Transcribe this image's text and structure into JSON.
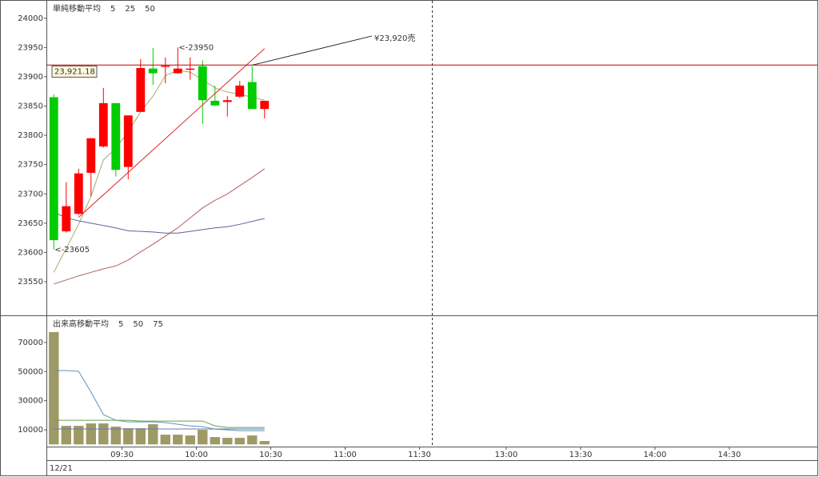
{
  "chart_data": [
    {
      "type": "candlestick",
      "title": "単純移動平均",
      "title_color": "#9a9a70",
      "categories": [
        null,
        null,
        null,
        null,
        null,
        null,
        null,
        null,
        null,
        null,
        null,
        null,
        null,
        null,
        null,
        null,
        null,
        null
      ],
      "open": [
        23865,
        23636,
        23666,
        23736,
        23781,
        23855,
        23746,
        23840,
        23914,
        23917,
        23906,
        23912,
        23918,
        23859,
        23857,
        23866,
        23891,
        23845
      ],
      "high": [
        23870,
        23720,
        23743,
        23795,
        23881,
        23855,
        23834,
        23930,
        23949,
        23933,
        23950,
        23933,
        23928,
        23885,
        23867,
        23893,
        23918,
        23859
      ],
      "low": [
        23605,
        23634,
        23664,
        23696,
        23779,
        23730,
        23725,
        23840,
        23886,
        23889,
        23905,
        23895,
        23819,
        23850,
        23832,
        23864,
        23845,
        23829
      ],
      "close": [
        23621,
        23679,
        23735,
        23795,
        23855,
        23741,
        23834,
        23915,
        23906,
        23919,
        23914,
        23914,
        23860,
        23851,
        23860,
        23885,
        23845,
        23859
      ],
      "up_color": "#ff0000",
      "down_color": "#00cc00",
      "series": [
        {
          "name": "5",
          "color": "#a8a870",
          "values": [
            23566,
            23607,
            23648,
            23696,
            23758,
            23778,
            23806,
            23840,
            23867,
            23902,
            23911,
            23908,
            23895,
            23881,
            23874,
            23870,
            23865,
            23860
          ]
        },
        {
          "name": "25",
          "color": "#b06060",
          "values": [
            23546,
            23553,
            23560,
            23566,
            23572,
            23577,
            23587,
            23601,
            23614,
            23628,
            23642,
            23659,
            23676,
            23689,
            23700,
            23714,
            23728,
            23743
          ]
        },
        {
          "name": "50",
          "color": "#6060a0",
          "values": [
            23669,
            23659,
            23654,
            23650,
            23646,
            23642,
            23637,
            23636,
            23635,
            23633,
            23633,
            23636,
            23639,
            23642,
            23644,
            23648,
            23653,
            23658
          ]
        }
      ],
      "trendline": {
        "color": "#dd2222",
        "x": [
          2,
          17
        ],
        "values": [
          23660,
          23948
        ]
      },
      "annotations": [
        {
          "value": 23950,
          "label": "<-23950",
          "at": "high",
          "color": "#ff0000"
        },
        {
          "value": 23605,
          "label": "<-23605",
          "at": "low",
          "color": "#00bb00"
        }
      ],
      "order_line": {
        "value": 23920,
        "label": "¥23,920売",
        "color": "#c00000"
      },
      "price_marker": {
        "value": 23921.18,
        "label": "23,921.18",
        "color": "#8a8a30"
      },
      "xlim": [
        -0.6,
        61.6
      ],
      "ylim": [
        23494,
        24027
      ],
      "yticks": [
        23550,
        23600,
        23650,
        23700,
        23750,
        23800,
        23850,
        23900,
        23950,
        24000
      ]
    },
    {
      "type": "bar",
      "title": "出来高移動平均",
      "title_color": "#6a9aa8",
      "categories": [
        null,
        null,
        null,
        null,
        null,
        null,
        null,
        null,
        null,
        null,
        null,
        null,
        null,
        null,
        null,
        null,
        null,
        null
      ],
      "values": [
        77160,
        12750,
        12750,
        14400,
        14400,
        12200,
        11100,
        11100,
        13850,
        6700,
        6700,
        6150,
        10000,
        5050,
        4500,
        4500,
        6150,
        2300
      ],
      "color": "#9e9a66",
      "series": [
        {
          "name": "5",
          "color": "#5a96b4",
          "values": [
            50700,
            50700,
            50200,
            35900,
            20500,
            16600,
            15500,
            15500,
            15500,
            15000,
            13850,
            12750,
            12200,
            10550,
            10000,
            9450,
            9450,
            9450
          ]
        },
        {
          "name": "50",
          "color": "#6a7ab0",
          "values": [
            10600,
            10600,
            10600,
            10600,
            10600,
            10600,
            10600,
            10600,
            10600,
            10600,
            10600,
            10600,
            10600,
            10600,
            10600,
            10600,
            10600,
            10600
          ]
        },
        {
          "name": "75",
          "color": "#66a050",
          "values": [
            16600,
            16600,
            16600,
            16600,
            16600,
            16600,
            16600,
            16050,
            16050,
            16050,
            16050,
            16050,
            16050,
            12750,
            11650,
            11650,
            11650,
            11650
          ]
        }
      ],
      "xlim": [
        -0.6,
        61.6
      ],
      "xticks": [
        {
          "value": 5.5,
          "label": "09:30"
        },
        {
          "value": 11.5,
          "label": "10:00"
        },
        {
          "value": 17.5,
          "label": "10:30"
        },
        {
          "value": 23.5,
          "label": "11:00"
        },
        {
          "value": 29.5,
          "label": "11:30"
        },
        {
          "value": 36.5,
          "label": "13:00"
        },
        {
          "value": 42.5,
          "label": "13:30"
        },
        {
          "value": 48.5,
          "label": "14:00"
        },
        {
          "value": 54.5,
          "label": "14:30"
        }
      ],
      "ylim": [
        -1500,
        87000
      ],
      "yticks": [
        10000,
        30000,
        50000,
        70000
      ]
    }
  ],
  "date_label": "12/21"
}
